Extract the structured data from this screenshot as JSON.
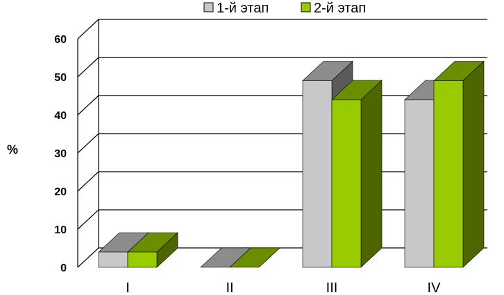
{
  "chart_data": {
    "type": "bar",
    "style": "3d-clustered-column",
    "categories": [
      "I",
      "II",
      "III",
      "IV"
    ],
    "series": [
      {
        "name": "1-й этап",
        "values": [
          4,
          0,
          49,
          44
        ],
        "color": "#c8c8c8"
      },
      {
        "name": "2-й этап",
        "values": [
          4,
          0,
          44,
          49
        ],
        "color": "#99cc00"
      }
    ],
    "ylabel": "%",
    "ylim": [
      0,
      60
    ],
    "yticks": [
      0,
      10,
      20,
      30,
      40,
      50,
      60
    ],
    "grid": true,
    "legend_position": "top"
  }
}
